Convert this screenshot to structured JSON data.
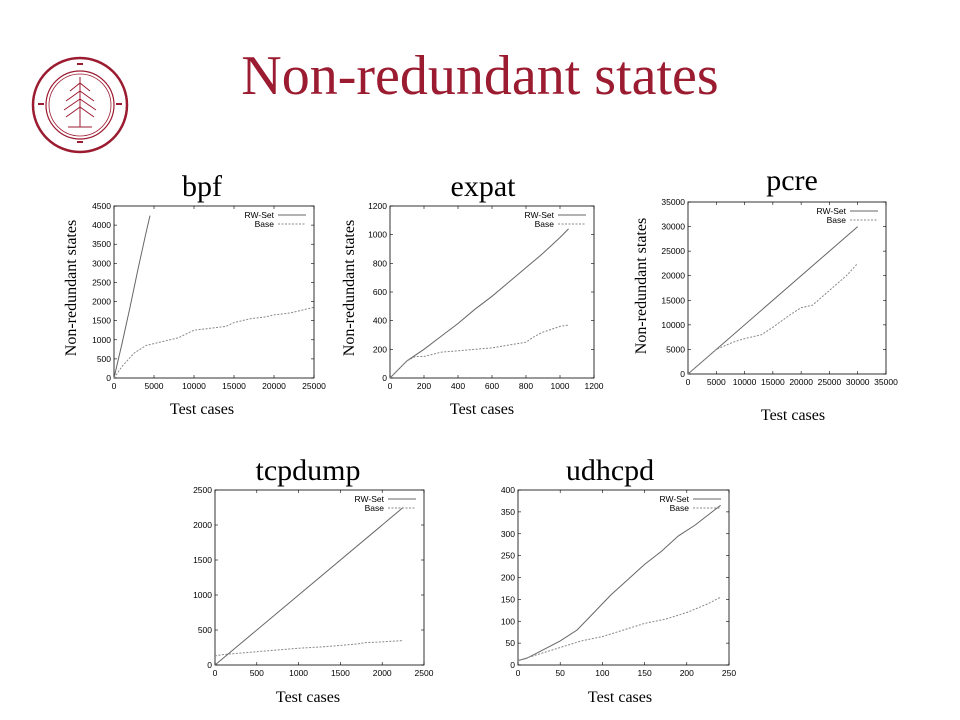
{
  "slide": {
    "title": "Non-redundant states"
  },
  "chart_data": [
    {
      "type": "line",
      "title": "bpf",
      "xlabel": "Test cases",
      "ylabel": "Non-redundant states",
      "xlim": [
        0,
        25000
      ],
      "ylim": [
        0,
        4500
      ],
      "xticks": [
        0,
        5000,
        10000,
        15000,
        20000,
        25000
      ],
      "yticks": [
        0,
        500,
        1000,
        1500,
        2000,
        2500,
        3000,
        3500,
        4000,
        4500
      ],
      "legend": "top-right",
      "series": [
        {
          "name": "RW-Set",
          "style": "solid",
          "x": [
            0,
            500,
            1000,
            2000,
            3000,
            4000,
            4500
          ],
          "y": [
            0,
            450,
            900,
            1850,
            2850,
            3800,
            4250
          ]
        },
        {
          "name": "Base",
          "style": "dashed",
          "x": [
            0,
            1000,
            2500,
            4000,
            6000,
            8000,
            10000,
            12000,
            14000,
            15000,
            17000,
            19000,
            20000,
            22000,
            24000,
            25000
          ],
          "y": [
            0,
            300,
            650,
            850,
            950,
            1050,
            1250,
            1300,
            1350,
            1450,
            1550,
            1600,
            1650,
            1700,
            1800,
            1850
          ]
        }
      ]
    },
    {
      "type": "line",
      "title": "expat",
      "xlabel": "Test cases",
      "ylabel": "Non-redundant states",
      "xlim": [
        0,
        1200
      ],
      "ylim": [
        0,
        1200
      ],
      "xticks": [
        0,
        200,
        400,
        600,
        800,
        1000,
        1200
      ],
      "yticks": [
        0,
        200,
        400,
        600,
        800,
        1000,
        1200
      ],
      "legend": "top-right",
      "series": [
        {
          "name": "RW-Set",
          "style": "solid",
          "x": [
            0,
            100,
            200,
            300,
            400,
            500,
            600,
            700,
            800,
            900,
            1000,
            1050
          ],
          "y": [
            0,
            120,
            200,
            290,
            380,
            480,
            570,
            670,
            770,
            870,
            980,
            1040
          ]
        },
        {
          "name": "Base",
          "style": "dashed",
          "x": [
            0,
            100,
            150,
            200,
            300,
            400,
            500,
            600,
            700,
            800,
            850,
            900,
            950,
            1000,
            1050
          ],
          "y": [
            0,
            120,
            150,
            150,
            180,
            190,
            200,
            210,
            230,
            250,
            290,
            320,
            340,
            360,
            370
          ]
        }
      ]
    },
    {
      "type": "line",
      "title": "pcre",
      "xlabel": "Test cases",
      "ylabel": "Non-redundant states",
      "xlim": [
        0,
        35000
      ],
      "ylim": [
        0,
        35000
      ],
      "xticks": [
        0,
        5000,
        10000,
        15000,
        20000,
        25000,
        30000,
        35000
      ],
      "yticks": [
        0,
        5000,
        10000,
        15000,
        20000,
        25000,
        30000,
        35000
      ],
      "legend": "top-right",
      "series": [
        {
          "name": "RW-Set",
          "style": "solid",
          "x": [
            0,
            30000
          ],
          "y": [
            0,
            30000
          ]
        },
        {
          "name": "Base",
          "style": "dashed",
          "x": [
            0,
            5000,
            8000,
            10000,
            13000,
            15000,
            18000,
            20000,
            22000,
            25000,
            28000,
            30000
          ],
          "y": [
            0,
            5000,
            6500,
            7200,
            8000,
            9500,
            12000,
            13500,
            14000,
            17000,
            20000,
            22500
          ]
        }
      ]
    },
    {
      "type": "line",
      "title": "tcpdump",
      "xlabel": "Test cases",
      "ylabel": "",
      "xlim": [
        0,
        2500
      ],
      "ylim": [
        0,
        2500
      ],
      "xticks": [
        0,
        500,
        1000,
        1500,
        2000,
        2500
      ],
      "yticks": [
        0,
        500,
        1000,
        1500,
        2000,
        2500
      ],
      "legend": "top-right",
      "series": [
        {
          "name": "RW-Set",
          "style": "solid",
          "x": [
            0,
            2250
          ],
          "y": [
            0,
            2250
          ]
        },
        {
          "name": "Base",
          "style": "dashed",
          "x": [
            0,
            100,
            300,
            500,
            800,
            1000,
            1300,
            1500,
            1700,
            1800,
            2000,
            2250
          ],
          "y": [
            130,
            150,
            170,
            190,
            220,
            240,
            260,
            280,
            300,
            320,
            330,
            350
          ]
        }
      ]
    },
    {
      "type": "line",
      "title": "udhcpd",
      "xlabel": "Test cases",
      "ylabel": "",
      "xlim": [
        0,
        250
      ],
      "ylim": [
        0,
        400
      ],
      "xticks": [
        0,
        50,
        100,
        150,
        200,
        250
      ],
      "yticks": [
        0,
        50,
        100,
        150,
        200,
        250,
        300,
        350,
        400
      ],
      "legend": "top-right",
      "series": [
        {
          "name": "RW-Set",
          "style": "solid",
          "x": [
            0,
            10,
            25,
            50,
            70,
            90,
            110,
            130,
            150,
            170,
            190,
            210,
            230,
            240
          ],
          "y": [
            10,
            15,
            30,
            55,
            80,
            120,
            160,
            195,
            230,
            260,
            295,
            320,
            350,
            365
          ]
        },
        {
          "name": "Base",
          "style": "dashed",
          "x": [
            0,
            25,
            50,
            75,
            100,
            125,
            150,
            175,
            200,
            225,
            240
          ],
          "y": [
            10,
            25,
            40,
            55,
            65,
            80,
            95,
            105,
            120,
            140,
            155
          ]
        }
      ]
    }
  ]
}
